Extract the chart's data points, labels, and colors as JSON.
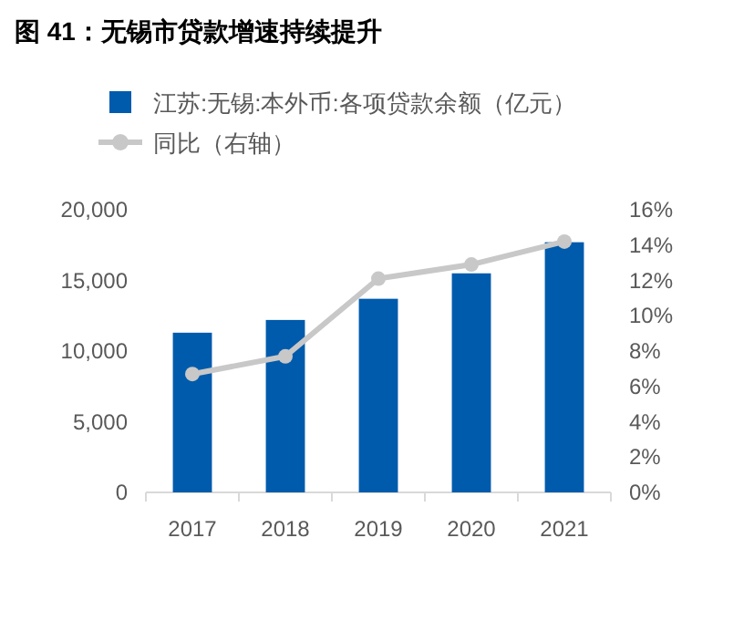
{
  "chart_data": {
    "type": "bar",
    "title": "图 41：无锡市贷款增速持续提升",
    "categories": [
      "2017",
      "2018",
      "2019",
      "2020",
      "2021"
    ],
    "series": [
      {
        "name": "江苏:无锡:本外币:各项贷款余额（亿元）",
        "color": "#005bac",
        "values": [
          11300,
          12200,
          13700,
          15500,
          17700
        ]
      },
      {
        "name": "同比（右轴）",
        "type": "line",
        "axis": "y2",
        "color": "#c8c8c8",
        "marker": "circle",
        "values": [
          6.7,
          7.7,
          12.1,
          12.9,
          14.2
        ]
      }
    ],
    "ylim": [
      0,
      20000
    ],
    "yticks": [
      0,
      {
        "value": 5000,
        "label": "5,000"
      },
      {
        "value": 10000,
        "label": "10,000"
      },
      {
        "value": 15000,
        "label": "15,000"
      },
      {
        "value": 20000,
        "label": "20,000"
      }
    ],
    "y2lim": [
      0,
      16
    ],
    "y2ticks": [
      {
        "value": 0,
        "label": "0%"
      },
      {
        "value": 2,
        "label": "2%"
      },
      {
        "value": 4,
        "label": "4%"
      },
      {
        "value": 6,
        "label": "6%"
      },
      {
        "value": 8,
        "label": "8%"
      },
      {
        "value": 10,
        "label": "10%"
      },
      {
        "value": 12,
        "label": "12%"
      },
      {
        "value": 14,
        "label": "14%"
      },
      {
        "value": 16,
        "label": "16%"
      }
    ],
    "legend": "top",
    "grid": false
  }
}
